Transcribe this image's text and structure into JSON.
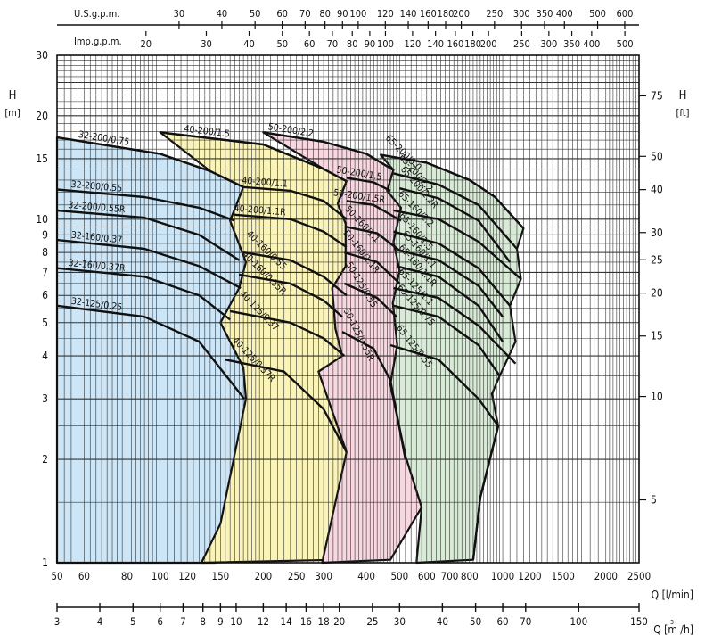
{
  "chart_data": {
    "type": "line",
    "x_scale": "log",
    "y_scale": "log",
    "x_axis": {
      "label": "Q [l/min]",
      "range": [
        50,
        2500
      ],
      "ticks": [
        "50",
        "60",
        "80",
        "100",
        "120",
        "150",
        "200",
        "250",
        "300",
        "400",
        "500",
        "600",
        "700",
        "800",
        "1000",
        "1200",
        "1500",
        "2000",
        "2500"
      ]
    },
    "x_axis_m3h": {
      "label": "Q [m  /h]",
      "range": [
        3,
        150
      ],
      "ticks": [
        "3",
        "4",
        "5",
        "6",
        "7",
        "8",
        "9",
        "10",
        "12",
        "14",
        "16",
        "18",
        "20",
        "25",
        "30",
        "40",
        "50",
        "60",
        "70",
        "100",
        "150"
      ]
    },
    "x_axis_usgpm": {
      "label": "U.S.g.p.m.",
      "ticks": [
        "30",
        "40",
        "50",
        "60",
        "70",
        "80",
        "90",
        "100",
        "120",
        "140",
        "160",
        "180",
        "200",
        "250",
        "300",
        "350",
        "400",
        "500",
        "600"
      ]
    },
    "x_axis_impgpm": {
      "label": "Imp.g.p.m.",
      "ticks": [
        "20",
        "30",
        "40",
        "50",
        "60",
        "70",
        "80",
        "90",
        "100",
        "120",
        "140",
        "160",
        "180",
        "200",
        "250",
        "300",
        "350",
        "400",
        "500"
      ]
    },
    "y_axis_left": {
      "label_top": "H",
      "label_unit": "[m]",
      "range": [
        1,
        30
      ],
      "ticks": [
        "1",
        "2",
        "3",
        "4",
        "5",
        "6",
        "7",
        "8",
        "9",
        "10",
        "15",
        "20",
        "30"
      ]
    },
    "y_axis_right": {
      "label_top": "H",
      "label_unit": "[ft]",
      "ticks": [
        "5",
        "10",
        "15",
        "20",
        "25",
        "30",
        "40",
        "50",
        "75"
      ]
    },
    "grid": true,
    "families": [
      {
        "name": "32",
        "color": "#cce6f7",
        "polygon": [
          [
            50,
            17.3
          ],
          [
            100,
            15.5
          ],
          [
            140,
            13.8
          ],
          [
            175,
            12.4
          ],
          [
            160,
            9.9
          ],
          [
            178,
            7.5
          ],
          [
            170,
            6.3
          ],
          [
            150,
            5.0
          ],
          [
            175,
            3.7
          ],
          [
            178,
            3.0
          ],
          [
            155,
            1.25
          ],
          [
            145,
            1.0
          ],
          [
            50,
            1.0
          ]
        ]
      },
      {
        "name": "40",
        "color": "#fbf4b8",
        "polygon": [
          [
            100,
            17.9
          ],
          [
            200,
            16.5
          ],
          [
            300,
            14.0
          ],
          [
            350,
            12.9
          ],
          [
            330,
            11.1
          ],
          [
            348,
            9.7
          ],
          [
            348,
            7.3
          ],
          [
            318,
            6.3
          ],
          [
            325,
            4.8
          ],
          [
            340,
            4.0
          ],
          [
            290,
            3.6
          ],
          [
            350,
            2.1
          ],
          [
            330,
            1.02
          ],
          [
            132,
            1.0
          ],
          [
            150,
            1.3
          ],
          [
            178,
            3.0
          ],
          [
            175,
            3.7
          ],
          [
            150,
            5.0
          ],
          [
            170,
            6.3
          ],
          [
            178,
            7.5
          ],
          [
            160,
            9.9
          ],
          [
            175,
            12.4
          ],
          [
            140,
            13.8
          ]
        ]
      },
      {
        "name": "50",
        "color": "#f8d7e1",
        "polygon": [
          [
            200,
            17.9
          ],
          [
            300,
            16.8
          ],
          [
            400,
            15.5
          ],
          [
            480,
            13.9
          ],
          [
            460,
            12.1
          ],
          [
            505,
            10.8
          ],
          [
            480,
            8.6
          ],
          [
            500,
            7.1
          ],
          [
            478,
            5.7
          ],
          [
            492,
            4.3
          ],
          [
            470,
            3.3
          ],
          [
            520,
            2.05
          ],
          [
            580,
            1.45
          ],
          [
            470,
            1.02
          ],
          [
            297,
            1.0
          ],
          [
            350,
            2.1
          ],
          [
            290,
            3.6
          ],
          [
            340,
            4.0
          ],
          [
            325,
            4.8
          ],
          [
            318,
            6.3
          ],
          [
            348,
            7.3
          ],
          [
            348,
            9.7
          ],
          [
            330,
            11.1
          ],
          [
            350,
            12.9
          ],
          [
            300,
            14.0
          ]
        ]
      },
      {
        "name": "65",
        "color": "#d8ebd6",
        "polygon": [
          [
            440,
            15.4
          ],
          [
            600,
            14.6
          ],
          [
            800,
            13.0
          ],
          [
            950,
            11.6
          ],
          [
            1150,
            9.4
          ],
          [
            1100,
            8.2
          ],
          [
            1130,
            6.7
          ],
          [
            1050,
            5.6
          ],
          [
            1090,
            4.4
          ],
          [
            980,
            3.5
          ],
          [
            930,
            3.1
          ],
          [
            970,
            2.5
          ],
          [
            860,
            1.55
          ],
          [
            820,
            1.02
          ],
          [
            560,
            1.0
          ],
          [
            580,
            1.45
          ],
          [
            520,
            2.05
          ],
          [
            470,
            3.3
          ],
          [
            492,
            4.3
          ],
          [
            478,
            5.7
          ],
          [
            500,
            7.1
          ],
          [
            480,
            8.6
          ],
          [
            505,
            10.8
          ],
          [
            460,
            12.1
          ],
          [
            480,
            13.9
          ]
        ]
      }
    ],
    "series": [
      {
        "name": "32-200/0.75",
        "points": [
          [
            50,
            17.3
          ],
          [
            100,
            15.5
          ],
          [
            140,
            13.8
          ],
          [
            175,
            12.4
          ]
        ]
      },
      {
        "name": "32-200/0.55",
        "points": [
          [
            50,
            12.2
          ],
          [
            90,
            11.6
          ],
          [
            130,
            10.8
          ],
          [
            165,
            9.9
          ]
        ]
      },
      {
        "name": "32-200/0.55R",
        "points": [
          [
            50,
            10.6
          ],
          [
            90,
            10.1
          ],
          [
            130,
            9.0
          ],
          [
            170,
            7.6
          ]
        ]
      },
      {
        "name": "32-160/0.37",
        "points": [
          [
            50,
            8.7
          ],
          [
            90,
            8.2
          ],
          [
            130,
            7.3
          ],
          [
            172,
            6.3
          ]
        ]
      },
      {
        "name": "32-160/0.37R",
        "points": [
          [
            50,
            7.2
          ],
          [
            90,
            6.8
          ],
          [
            130,
            6.0
          ],
          [
            160,
            5.1
          ]
        ]
      },
      {
        "name": "32-125/0.25",
        "points": [
          [
            50,
            5.6
          ],
          [
            90,
            5.2
          ],
          [
            130,
            4.4
          ],
          [
            176,
            3.0
          ]
        ]
      },
      {
        "name": "40-200/1.5",
        "points": [
          [
            100,
            17.9
          ],
          [
            200,
            16.5
          ],
          [
            300,
            14.0
          ],
          [
            350,
            12.9
          ]
        ]
      },
      {
        "name": "40-200/1.1",
        "points": [
          [
            175,
            12.4
          ],
          [
            240,
            12.1
          ],
          [
            300,
            11.3
          ],
          [
            350,
            10.0
          ]
        ]
      },
      {
        "name": "40-200/1.1R",
        "points": [
          [
            165,
            10.3
          ],
          [
            240,
            10.0
          ],
          [
            300,
            9.2
          ],
          [
            350,
            8.3
          ]
        ]
      },
      {
        "name": "40-160/0.55",
        "points": [
          [
            175,
            8.0
          ],
          [
            240,
            7.6
          ],
          [
            300,
            6.8
          ],
          [
            350,
            6.0
          ]
        ]
      },
      {
        "name": "40-160/0.55R",
        "points": [
          [
            170,
            6.9
          ],
          [
            240,
            6.5
          ],
          [
            300,
            5.8
          ],
          [
            340,
            5.2
          ]
        ]
      },
      {
        "name": "40-125/0.37",
        "points": [
          [
            160,
            5.4
          ],
          [
            240,
            5.0
          ],
          [
            300,
            4.5
          ],
          [
            345,
            4.0
          ]
        ]
      },
      {
        "name": "40-125/0.37R",
        "points": [
          [
            155,
            3.9
          ],
          [
            230,
            3.6
          ],
          [
            300,
            2.8
          ],
          [
            350,
            2.1
          ]
        ]
      },
      {
        "name": "50-200/2.2",
        "points": [
          [
            200,
            17.9
          ],
          [
            300,
            16.8
          ],
          [
            400,
            15.5
          ],
          [
            480,
            13.9
          ]
        ]
      },
      {
        "name": "50-200/1.5",
        "points": [
          [
            350,
            13.2
          ],
          [
            420,
            12.8
          ],
          [
            470,
            12.1
          ]
        ]
      },
      {
        "name": "50-200/1.5R",
        "points": [
          [
            350,
            11.3
          ],
          [
            420,
            11.0
          ],
          [
            505,
            9.9
          ]
        ]
      },
      {
        "name": "50-160/1.1",
        "points": [
          [
            350,
            9.5
          ],
          [
            430,
            9.1
          ],
          [
            500,
            8.1
          ]
        ]
      },
      {
        "name": "50-160/1.1R",
        "points": [
          [
            345,
            8.0
          ],
          [
            430,
            7.5
          ],
          [
            500,
            6.5
          ]
        ]
      },
      {
        "name": "50-125/0.55",
        "points": [
          [
            345,
            6.5
          ],
          [
            430,
            5.9
          ],
          [
            490,
            5.2
          ]
        ]
      },
      {
        "name": "50-125/0.55R",
        "points": [
          [
            340,
            4.7
          ],
          [
            420,
            4.2
          ],
          [
            470,
            3.4
          ],
          [
            520,
            2.0
          ]
        ]
      },
      {
        "name": "65-200/3.0",
        "points": [
          [
            440,
            15.4
          ],
          [
            600,
            14.6
          ],
          [
            800,
            13.0
          ],
          [
            950,
            11.6
          ],
          [
            1150,
            9.4
          ]
        ]
      },
      {
        "name": "65-200/2.2",
        "points": [
          [
            480,
            13.6
          ],
          [
            650,
            12.6
          ],
          [
            850,
            11.0
          ],
          [
            1100,
            8.2
          ]
        ]
      },
      {
        "name": "65-200/2.2R",
        "points": [
          [
            500,
            12.3
          ],
          [
            650,
            11.5
          ],
          [
            850,
            9.9
          ],
          [
            1050,
            7.5
          ]
        ]
      },
      {
        "name": "65-160/2.2",
        "points": [
          [
            480,
            10.6
          ],
          [
            650,
            10.0
          ],
          [
            850,
            8.6
          ],
          [
            1130,
            6.7
          ]
        ]
      },
      {
        "name": "65-160/1.5",
        "points": [
          [
            480,
            9.2
          ],
          [
            650,
            8.5
          ],
          [
            850,
            7.2
          ],
          [
            1050,
            5.6
          ]
        ]
      },
      {
        "name": "65-160/1.1",
        "points": [
          [
            500,
            8.1
          ],
          [
            650,
            7.6
          ],
          [
            850,
            6.4
          ],
          [
            1000,
            5.2
          ]
        ]
      },
      {
        "name": "65-160/1.1R",
        "points": [
          [
            490,
            7.3
          ],
          [
            650,
            6.8
          ],
          [
            850,
            5.6
          ],
          [
            1000,
            4.4
          ]
        ]
      },
      {
        "name": "65-125/1.1",
        "points": [
          [
            480,
            6.3
          ],
          [
            650,
            5.9
          ],
          [
            850,
            4.9
          ],
          [
            1090,
            3.8
          ]
        ]
      },
      {
        "name": "65-125/0.75",
        "points": [
          [
            480,
            5.6
          ],
          [
            650,
            5.2
          ],
          [
            850,
            4.3
          ],
          [
            980,
            3.5
          ]
        ]
      },
      {
        "name": "65-125/0.55",
        "points": [
          [
            470,
            4.3
          ],
          [
            650,
            3.9
          ],
          [
            850,
            3.0
          ],
          [
            970,
            2.5
          ],
          [
            860,
            1.55
          ],
          [
            820,
            1.02
          ]
        ]
      }
    ]
  }
}
